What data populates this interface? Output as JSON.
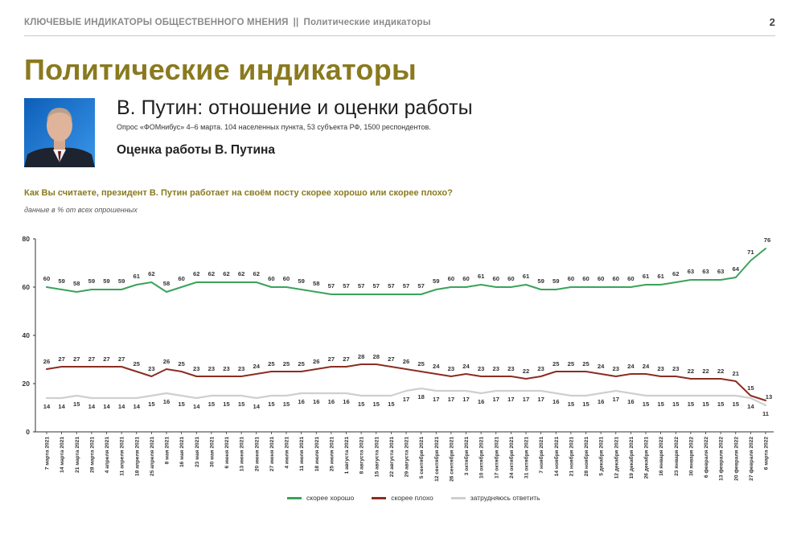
{
  "header": {
    "left": "КЛЮЧЕВЫЕ ИНДИКАТОРЫ ОБЩЕСТВЕННОГО МНЕНИЯ",
    "separator": "||",
    "right": "Политические индикаторы",
    "page": "2"
  },
  "section_title": "Политические индикаторы",
  "topic_title": "В. Путин: отношение и оценки работы",
  "survey_info": "Опрос «ФОМнибус» 4–6 марта. 104 населенных пункта, 53 субъекта РФ, 1500 респондентов.",
  "sub_title": "Оценка работы В. Путина",
  "question": "Как Вы считаете, президент В. Путин работает на своём посту скорее хорошо или скорее плохо?",
  "note": "данные в % от всех опрошенных",
  "colors": {
    "good": "#3aa35a",
    "bad": "#8b2d22",
    "hard": "#cfcfcf",
    "accent": "#8a7a1f"
  },
  "chart_data": {
    "type": "line",
    "ylim": [
      0,
      80
    ],
    "yticks": [
      0,
      20,
      40,
      60,
      80
    ],
    "grid": false,
    "legend_position": "bottom",
    "categories": [
      "7 марта 2021",
      "14 марта 2021",
      "21 марта 2021",
      "28 марта 2021",
      "4 апреля 2021",
      "11 апреля 2021",
      "18 апреля 2021",
      "25 апреля 2021",
      "8 мая 2021",
      "16 мая 2021",
      "23 мая 2021",
      "30 мая 2021",
      "6 июня 2021",
      "13 июня 2021",
      "20 июня 2021",
      "27 июня 2021",
      "4 июля 2021",
      "11 июля 2021",
      "18 июля 2021",
      "25 июля 2021",
      "1 августа 2021",
      "8 августа 2021",
      "15 августа 2021",
      "22 августа 2021",
      "29 августа 2021",
      "5 сентября 2021",
      "12 сентября 2021",
      "26 сентября 2021",
      "3 октября 2021",
      "10 октября 2021",
      "17 октября 2021",
      "24 октября 2021",
      "31 октября 2021",
      "7 ноября 2021",
      "14 ноября 2021",
      "21 ноября 2021",
      "28 ноября 2021",
      "5 декабря 2021",
      "12 декабря 2021",
      "19 декабря 2021",
      "26 декабря 2021",
      "16 января 2022",
      "23 января 2022",
      "30 января 2022",
      "6 февраля 2022",
      "13 февраля 2022",
      "20 февраля 2022",
      "27 февраля 2022",
      "6 марта 2022"
    ],
    "series": [
      {
        "name": "скорее хорошо",
        "color": "#3aa35a",
        "values": [
          60,
          59,
          58,
          59,
          59,
          59,
          61,
          62,
          58,
          60,
          62,
          62,
          62,
          62,
          62,
          60,
          60,
          59,
          58,
          57,
          57,
          57,
          57,
          57,
          57,
          57,
          59,
          60,
          60,
          61,
          60,
          60,
          61,
          59,
          59,
          60,
          60,
          60,
          60,
          60,
          61,
          61,
          62,
          63,
          63,
          63,
          64,
          71,
          76
        ]
      },
      {
        "name": "скорее плохо",
        "color": "#8b2d22",
        "values": [
          26,
          27,
          27,
          27,
          27,
          27,
          25,
          23,
          26,
          25,
          23,
          23,
          23,
          23,
          24,
          25,
          25,
          25,
          26,
          27,
          27,
          28,
          28,
          27,
          26,
          25,
          24,
          23,
          24,
          23,
          23,
          23,
          22,
          23,
          25,
          25,
          25,
          24,
          23,
          24,
          24,
          23,
          23,
          22,
          22,
          22,
          21,
          15,
          13
        ]
      },
      {
        "name": "затрудняюсь ответить",
        "color": "#cfcfcf",
        "values": [
          14,
          14,
          15,
          14,
          14,
          14,
          14,
          15,
          16,
          15,
          14,
          15,
          15,
          15,
          14,
          15,
          15,
          16,
          16,
          16,
          16,
          15,
          15,
          15,
          17,
          18,
          17,
          17,
          17,
          16,
          17,
          17,
          17,
          17,
          16,
          15,
          15,
          16,
          17,
          16,
          15,
          15,
          15,
          15,
          15,
          15,
          15,
          14,
          11
        ]
      }
    ]
  }
}
